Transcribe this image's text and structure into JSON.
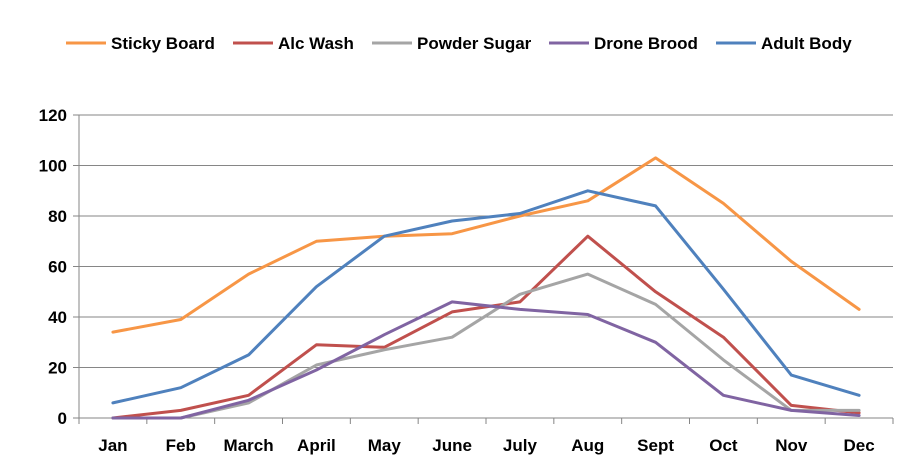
{
  "chart_data": {
    "type": "line",
    "categories": [
      "Jan",
      "Feb",
      "March",
      "April",
      "May",
      "June",
      "July",
      "Aug",
      "Sept",
      "Oct",
      "Nov",
      "Dec"
    ],
    "ylim": [
      0,
      120
    ],
    "yticks": [
      0,
      20,
      40,
      60,
      80,
      100,
      120
    ],
    "grid": true,
    "legend_position": "top",
    "title": "",
    "xlabel": "",
    "ylabel": "",
    "series": [
      {
        "name": "Sticky Board",
        "color": "#F79646",
        "values": [
          34,
          39,
          57,
          70,
          72,
          73,
          80,
          86,
          103,
          85,
          62,
          43
        ]
      },
      {
        "name": "Alc Wash",
        "color": "#C0504D",
        "values": [
          0,
          3,
          9,
          29,
          28,
          42,
          46,
          72,
          50,
          32,
          5,
          2
        ]
      },
      {
        "name": "Powder Sugar",
        "color": "#A5A5A5",
        "values": [
          0,
          0,
          6,
          21,
          27,
          32,
          49,
          57,
          45,
          23,
          3,
          3
        ]
      },
      {
        "name": "Drone Brood",
        "color": "#8064A2",
        "values": [
          0,
          0,
          7,
          19,
          33,
          46,
          43,
          41,
          30,
          9,
          3,
          1
        ]
      },
      {
        "name": "Adult Body",
        "color": "#4F81BD",
        "values": [
          6,
          12,
          25,
          52,
          72,
          78,
          81,
          90,
          84,
          51,
          17,
          9
        ]
      }
    ]
  }
}
